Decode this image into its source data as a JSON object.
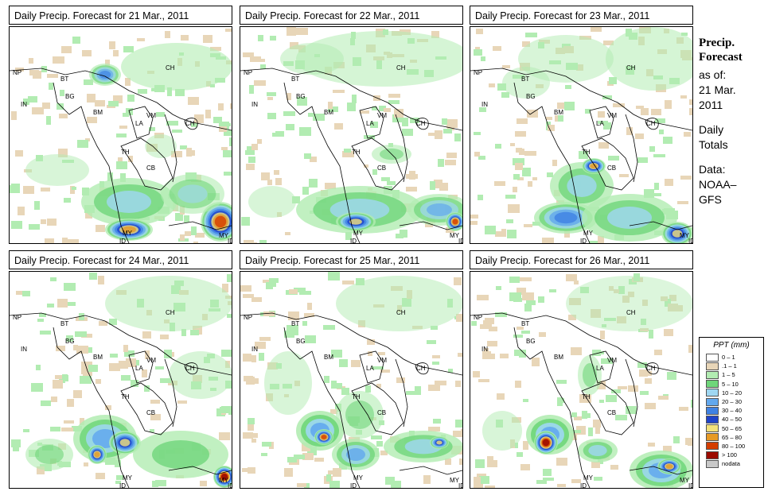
{
  "panels": [
    {
      "title": "Daily Precip. Forecast for  21 Mar., 2011"
    },
    {
      "title": "Daily Precip. Forecast for  22 Mar., 2011"
    },
    {
      "title": "Daily Precip. Forecast for  23 Mar., 2011"
    },
    {
      "title": "Daily Precip. Forecast for  24 Mar., 2011"
    },
    {
      "title": "Daily Precip. Forecast for  25 Mar., 2011"
    },
    {
      "title": "Daily Precip. Forecast for  26 Mar., 2011"
    }
  ],
  "country_labels": [
    "NP",
    "BT",
    "BG",
    "IN",
    "BM",
    "CH",
    "VM",
    "LA",
    "CH",
    "TH",
    "CB",
    "MY",
    "ID",
    "MY",
    "ID"
  ],
  "sidebar": {
    "heading1": "Precip.",
    "heading2": "Forecast",
    "asof1": "as of:",
    "asof2": "21 Mar.",
    "asof3": "2011",
    "daily1": "Daily",
    "daily2": "Totals",
    "data1": "Data:",
    "data2": "NOAA–",
    "data3": "GFS"
  },
  "legend": {
    "title": "PPT (mm)",
    "items": [
      {
        "label": "0 – 1",
        "color": "#ffffff"
      },
      {
        "label": ".1 – 1",
        "color": "#e8d6b8"
      },
      {
        "label": "1 – 5",
        "color": "#b2ecb2"
      },
      {
        "label": "5 – 10",
        "color": "#6fd67a"
      },
      {
        "label": "10 – 20",
        "color": "#9fd7f2"
      },
      {
        "label": "20 – 30",
        "color": "#62a8ee"
      },
      {
        "label": "30 – 40",
        "color": "#3f82e3"
      },
      {
        "label": "40 – 50",
        "color": "#1f43c9"
      },
      {
        "label": "50 – 65",
        "color": "#f3e17a"
      },
      {
        "label": "65 – 80",
        "color": "#e79a25"
      },
      {
        "label": "80 – 100",
        "color": "#d43d00"
      },
      {
        "label": "> 100",
        "color": "#9c0b00"
      },
      {
        "label": "nodata",
        "color": "#c8c8c8"
      }
    ]
  },
  "colors": {
    "border": "#000000",
    "coast": "#000000"
  }
}
